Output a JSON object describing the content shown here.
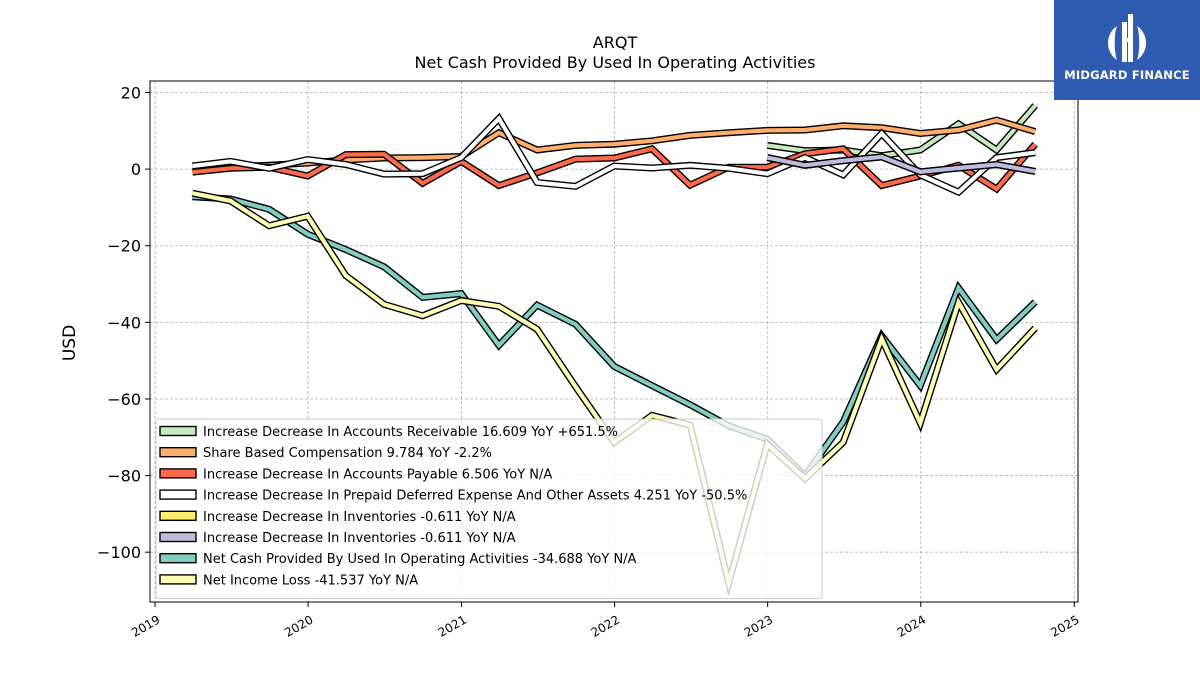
{
  "brand": {
    "name": "MIDGARD FINANCE"
  },
  "chart_data": {
    "type": "line",
    "title": "ARQT",
    "subtitle": "Net Cash Provided By Used In Operating Activities",
    "ylabel": "USD",
    "xlabel": "",
    "xlim": [
      "2018-12-20",
      "2025-01-10"
    ],
    "ylim": [
      -113,
      23
    ],
    "yticks": [
      20,
      0,
      -20,
      -40,
      -60,
      -80,
      -100
    ],
    "ytick_labels": [
      "20",
      "0",
      "−20",
      "−40",
      "−60",
      "−80",
      "−100"
    ],
    "xticks": [
      "2019-01-01",
      "2020-01-01",
      "2021-01-01",
      "2022-01-01",
      "2023-01-01",
      "2024-01-01",
      "2025-01-01"
    ],
    "xtick_labels": [
      "2019",
      "2020",
      "2021",
      "2022",
      "2023",
      "2024",
      "2025"
    ],
    "grid": true,
    "legend_position": "lower-left",
    "series": [
      {
        "name": "Increase Decrease In Accounts Receivable",
        "legend_label": "Increase Decrease In Accounts Receivable  16.609 YoY +651.5%",
        "color": "#c7e9c0",
        "x": [
          "2022-12-31",
          "2023-03-31",
          "2023-06-30",
          "2023-09-30",
          "2023-12-31",
          "2024-03-31",
          "2024-06-30",
          "2024-09-30"
        ],
        "y": [
          6.2,
          4.8,
          5.0,
          3.5,
          5.0,
          11.8,
          5.0,
          16.6
        ]
      },
      {
        "name": "Share Based Compensation",
        "legend_label": "Share Based Compensation  9.784 YoY -2.2%",
        "color": "#fdae6b",
        "x": [
          "2019-03-31",
          "2019-06-30",
          "2019-09-30",
          "2019-12-31",
          "2020-03-31",
          "2020-06-30",
          "2020-09-30",
          "2020-12-31",
          "2021-03-31",
          "2021-06-30",
          "2021-09-30",
          "2021-12-31",
          "2022-03-31",
          "2022-06-30",
          "2022-09-30",
          "2022-12-31",
          "2023-03-31",
          "2023-06-30",
          "2023-09-30",
          "2023-12-31",
          "2024-03-31",
          "2024-06-30",
          "2024-09-30"
        ],
        "y": [
          0.3,
          0.6,
          1.0,
          1.6,
          2.4,
          2.9,
          3.0,
          3.3,
          9.5,
          5.0,
          6.2,
          6.5,
          7.4,
          8.8,
          9.5,
          10.1,
          10.2,
          11.3,
          10.8,
          9.3,
          10.2,
          12.8,
          9.8
        ]
      },
      {
        "name": "Increase Decrease In Accounts Payable",
        "legend_label": "Increase Decrease In Accounts Payable  6.506 YoY N/A",
        "color": "#fb6a4a",
        "x": [
          "2019-03-31",
          "2019-06-30",
          "2019-09-30",
          "2019-12-31",
          "2020-03-31",
          "2020-06-30",
          "2020-09-30",
          "2020-12-31",
          "2021-03-31",
          "2021-06-30",
          "2021-09-30",
          "2021-12-31",
          "2022-03-31",
          "2022-06-30",
          "2022-09-30",
          "2022-12-31",
          "2023-03-31",
          "2023-06-30",
          "2023-09-30",
          "2023-12-31",
          "2024-03-31",
          "2024-06-30",
          "2024-09-30"
        ],
        "y": [
          -0.8,
          0.2,
          0.5,
          -1.8,
          3.8,
          3.9,
          -3.7,
          2.0,
          -4.3,
          -1.0,
          2.6,
          2.9,
          5.3,
          -4.2,
          0.5,
          0.5,
          4.0,
          5.3,
          -4.3,
          -1.8,
          1.0,
          -5.2,
          6.5
        ]
      },
      {
        "name": "Increase Decrease In Prepaid Deferred Expense And Other Assets",
        "legend_label": "Increase Decrease In Prepaid Deferred Expense And Other Assets  4.251 YoY -50.5%",
        "color": "#ffffff",
        "x": [
          "2019-03-31",
          "2019-06-30",
          "2019-09-30",
          "2019-12-31",
          "2020-03-31",
          "2020-06-30",
          "2020-09-30",
          "2020-12-31",
          "2021-03-31",
          "2021-06-30",
          "2021-09-30",
          "2021-12-31",
          "2022-03-31",
          "2022-06-30",
          "2022-09-30",
          "2022-12-31",
          "2023-03-31",
          "2023-06-30",
          "2023-09-30",
          "2023-12-31",
          "2024-03-31",
          "2024-06-30",
          "2024-09-30"
        ],
        "y": [
          0.8,
          2.0,
          0.2,
          2.5,
          1.2,
          -1.3,
          -1.2,
          3.0,
          13.2,
          -3.5,
          -4.5,
          0.8,
          0.3,
          1.0,
          0.2,
          -1.2,
          3.0,
          -1.5,
          9.3,
          -1.5,
          -6.0,
          3.0,
          4.3
        ]
      },
      {
        "name": "Increase Decrease In Inventories",
        "legend_label": "Increase Decrease In Inventories  -0.611 YoY N/A",
        "color": "#ffed6f",
        "x": [
          "2022-12-31",
          "2023-03-31",
          "2023-06-30",
          "2023-09-30",
          "2023-12-31",
          "2024-03-31",
          "2024-06-30",
          "2024-09-30"
        ],
        "y": [
          3.0,
          1.0,
          2.2,
          3.2,
          -0.7,
          0.3,
          1.2,
          -0.6
        ]
      },
      {
        "name": "Increase Decrease In Inventories",
        "legend_label": "Increase Decrease In Inventories  -0.611 YoY N/A",
        "color": "#bcbddc",
        "x": [
          "2022-12-31",
          "2023-03-31",
          "2023-06-30",
          "2023-09-30",
          "2023-12-31",
          "2024-03-31",
          "2024-06-30",
          "2024-09-30"
        ],
        "y": [
          3.0,
          1.0,
          2.2,
          3.2,
          -0.7,
          0.3,
          1.2,
          -0.6
        ]
      },
      {
        "name": "Net Cash Provided By Used In Operating Activities",
        "legend_label": "Net Cash Provided By Used In Operating Activities  -34.688 YoY N/A",
        "color": "#80cdc1",
        "x": [
          "2019-03-31",
          "2019-06-30",
          "2019-09-30",
          "2019-12-31",
          "2020-03-31",
          "2020-06-30",
          "2020-09-30",
          "2020-12-31",
          "2021-03-31",
          "2021-06-30",
          "2021-09-30",
          "2021-12-31",
          "2022-03-31",
          "2022-06-30",
          "2022-09-30",
          "2022-12-31",
          "2023-03-31",
          "2023-06-30",
          "2023-09-30",
          "2023-12-31",
          "2024-03-31",
          "2024-06-30",
          "2024-09-30"
        ],
        "y": [
          -7.2,
          -7.8,
          -10.5,
          -17.0,
          -21.0,
          -25.5,
          -33.5,
          -32.5,
          -46.0,
          -35.5,
          -40.5,
          -51.5,
          -56.5,
          -61.5,
          -67.0,
          -70.5,
          -80.0,
          -66.0,
          -43.5,
          -56.5,
          -31.0,
          -44.5,
          -34.7
        ]
      },
      {
        "name": "Net Income Loss",
        "legend_label": "Net Income Loss  -41.537 YoY N/A",
        "color": "#ffffb3",
        "x": [
          "2019-03-31",
          "2019-06-30",
          "2019-09-30",
          "2019-12-31",
          "2020-03-31",
          "2020-06-30",
          "2020-09-30",
          "2020-12-31",
          "2021-03-31",
          "2021-06-30",
          "2021-09-30",
          "2021-12-31",
          "2022-03-31",
          "2022-06-30",
          "2022-09-30",
          "2022-12-31",
          "2023-03-31",
          "2023-06-30",
          "2023-09-30",
          "2023-12-31",
          "2024-03-31",
          "2024-06-30",
          "2024-09-30"
        ],
        "y": [
          -6.3,
          -8.3,
          -14.8,
          -12.3,
          -27.8,
          -35.3,
          -38.3,
          -34.3,
          -35.8,
          -41.8,
          -56.8,
          -71.3,
          -64.3,
          -66.8,
          -108.0,
          -71.8,
          -80.8,
          -71.3,
          -44.3,
          -66.3,
          -34.8,
          -52.3,
          -41.5
        ]
      }
    ]
  }
}
